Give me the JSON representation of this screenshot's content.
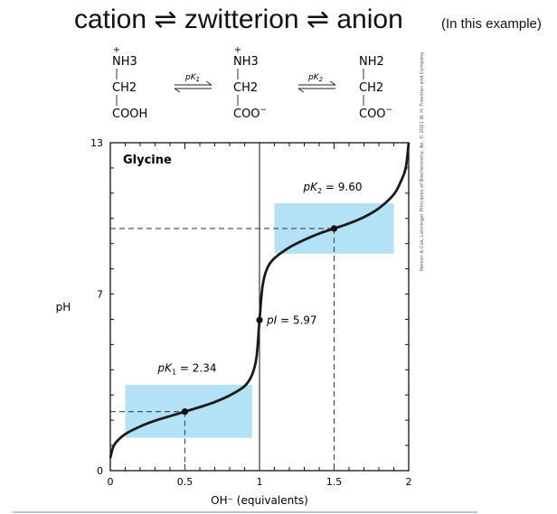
{
  "header": {
    "equation": "cation ⇌ zwitterion ⇌ anion",
    "note": "(In this example)"
  },
  "reaction": {
    "species": [
      {
        "charge": "+",
        "amino": "NH3",
        "carbon": "CH2",
        "carboxyl": "COOH",
        "carboxyl_charge": ""
      },
      {
        "charge": "+",
        "amino": "NH3",
        "carbon": "CH2",
        "carboxyl": "COO",
        "carboxyl_charge": "−"
      },
      {
        "charge": "",
        "amino": "NH2",
        "carbon": "CH2",
        "carboxyl": "COO",
        "carboxyl_charge": "−"
      }
    ],
    "arrows": [
      {
        "label_base": "pK",
        "label_sub": "1"
      },
      {
        "label_base": "pK",
        "label_sub": "2"
      }
    ]
  },
  "credit": "Nelson & Cox, Lehninger Principles of Biochemistry, 8e, © 2021 W. H. Freeman and Company",
  "chart_data": {
    "type": "line",
    "panel_title": "Glycine",
    "xlabel": "OH⁻ (equivalents)",
    "ylabel": "pH",
    "xlim": [
      0,
      2
    ],
    "ylim": [
      0,
      13
    ],
    "xticks": [
      0,
      0.5,
      1,
      1.5,
      2
    ],
    "xtick_labels": [
      "0",
      "0.5",
      "1",
      "1.5",
      "2"
    ],
    "yticks": [
      0,
      7,
      13
    ],
    "ytick_labels": [
      "0",
      "7",
      "13"
    ],
    "series": [
      {
        "points": [
          [
            0.0,
            0.5
          ],
          [
            0.02,
            0.95
          ],
          [
            0.05,
            1.2
          ],
          [
            0.1,
            1.45
          ],
          [
            0.2,
            1.75
          ],
          [
            0.3,
            1.98
          ],
          [
            0.4,
            2.16
          ],
          [
            0.5,
            2.34
          ],
          [
            0.6,
            2.52
          ],
          [
            0.7,
            2.72
          ],
          [
            0.8,
            2.98
          ],
          [
            0.9,
            3.35
          ],
          [
            0.95,
            3.8
          ],
          [
            0.98,
            4.5
          ],
          [
            1.0,
            5.97
          ],
          [
            1.02,
            7.3
          ],
          [
            1.05,
            8.0
          ],
          [
            1.1,
            8.42
          ],
          [
            1.2,
            8.85
          ],
          [
            1.3,
            9.15
          ],
          [
            1.4,
            9.4
          ],
          [
            1.5,
            9.6
          ],
          [
            1.6,
            9.8
          ],
          [
            1.7,
            10.05
          ],
          [
            1.8,
            10.4
          ],
          [
            1.9,
            10.95
          ],
          [
            1.95,
            11.5
          ],
          [
            1.98,
            12.0
          ],
          [
            2.0,
            13.0
          ]
        ]
      }
    ],
    "regions": [
      {
        "x": [
          0.1,
          0.95
        ],
        "y": [
          1.3,
          3.4
        ]
      },
      {
        "x": [
          1.1,
          1.9
        ],
        "y": [
          8.6,
          10.6
        ]
      }
    ],
    "annotations": [
      {
        "base": "pK",
        "sub": "1",
        "text": " = 2.34",
        "x": 0.5,
        "y": 2.34,
        "guides": true
      },
      {
        "base": "pK",
        "sub": "2",
        "text": " = 9.60",
        "x": 1.5,
        "y": 9.6,
        "guides": true
      },
      {
        "base": "pI",
        "sub": "",
        "text": " = 5.97",
        "x": 1.0,
        "y": 5.97,
        "guides": false
      }
    ],
    "colors": {
      "region": "#b3e2f7",
      "curve": "#1a1a1a",
      "guide": "#444444"
    }
  }
}
